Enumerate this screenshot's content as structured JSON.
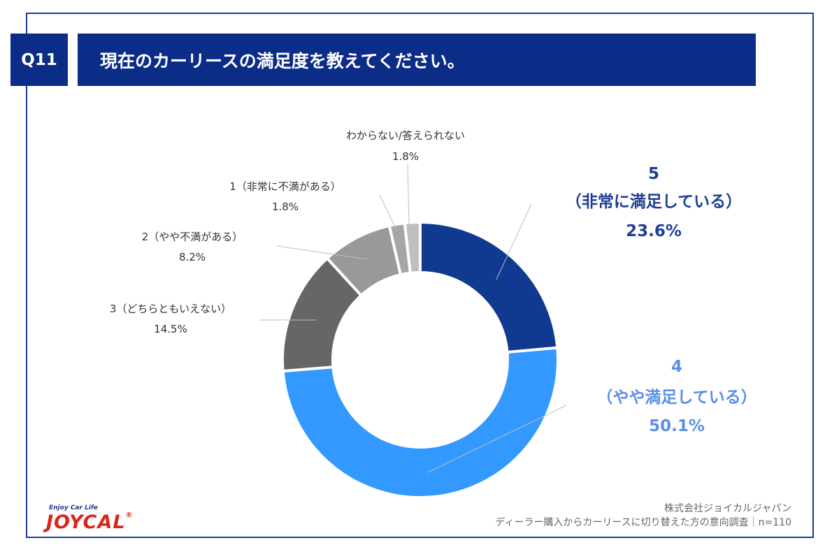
{
  "header": {
    "question_tag": "Q11",
    "title": "現在のカーリースの満足度を教えてください。"
  },
  "colors": {
    "header_bg": "#0b2c87",
    "frame": "#1a3d8f",
    "label_dark_blue": "#1f3f94",
    "label_light_blue": "#5b8fe6"
  },
  "chart_data": {
    "type": "pie",
    "style": "donut",
    "start_angle_deg": 0,
    "direction": "clockwise",
    "slices": [
      {
        "category": "5",
        "label": "（非常に満足している）",
        "pct_text": "23.6%",
        "value": 23.6,
        "color": "#0f3a8f"
      },
      {
        "category": "4",
        "label": "（やや満足している）",
        "pct_text": "50.1%",
        "value": 50.1,
        "color": "#3399ff"
      },
      {
        "category": "3（どちらともいえない）",
        "pct_text": "14.5%",
        "value": 14.5,
        "color": "#666666"
      },
      {
        "category": "2（やや不満がある）",
        "pct_text": "8.2%",
        "value": 8.2,
        "color": "#999999"
      },
      {
        "category": "1（非常に不満がある）",
        "pct_text": "1.8%",
        "value": 1.8,
        "color": "#a6a6a6"
      },
      {
        "category": "わからない/答えられない",
        "pct_text": "1.8%",
        "value": 1.8,
        "color": "#bfbfbf"
      }
    ]
  },
  "footer": {
    "company": "株式会社ジョイカルジャパン",
    "survey": "ディーラー購入からカーリースに切り替えた方の意向調査｜n=110"
  },
  "logo": {
    "tagline": "Enjoy Car Life",
    "wordmark": "JOYCAL",
    "registered": "®"
  }
}
